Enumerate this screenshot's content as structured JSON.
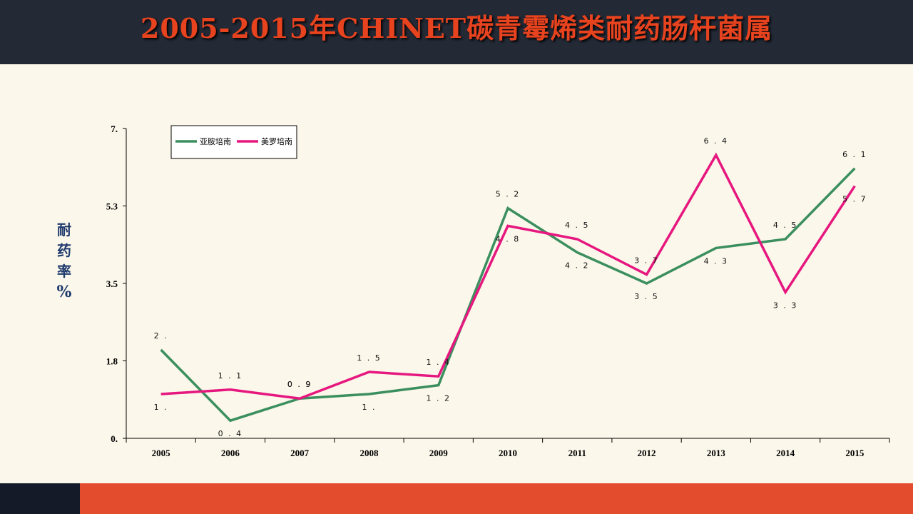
{
  "title": "2005-2015年CHINET碳青霉烯类耐药肠杆菌属",
  "chart_data": {
    "type": "line",
    "title": "2005-2015年CHINET碳青霉烯类耐药肠杆菌属",
    "ylabel": [
      "耐",
      "药",
      "率",
      "%"
    ],
    "xlabel": "",
    "categories": [
      "2005",
      "2006",
      "2007",
      "2008",
      "2009",
      "2010",
      "2011",
      "2012",
      "2013",
      "2014",
      "2015"
    ],
    "y_ticks": [
      "0.",
      "1.8",
      "3.5",
      "5.3",
      "7."
    ],
    "ylim": [
      0,
      7
    ],
    "legend_position": "top-left",
    "grid": false,
    "series": [
      {
        "name": "亚胺培南",
        "color": "#3b8f5f",
        "values": [
          2.0,
          0.4,
          0.9,
          1.0,
          1.2,
          5.2,
          4.2,
          3.5,
          4.3,
          4.5,
          6.1
        ],
        "labels": [
          "2.",
          "0.4",
          "0.9",
          "1.",
          "1.2",
          "5.2",
          "4.2",
          "3.5",
          "4.3",
          "4.5",
          "6.1"
        ]
      },
      {
        "name": "美罗培南",
        "color": "#e6177f",
        "values": [
          1.0,
          1.1,
          0.9,
          1.5,
          1.4,
          4.8,
          4.5,
          3.7,
          6.4,
          3.3,
          5.7
        ],
        "labels": [
          "1.",
          "1.1",
          "0.9",
          "1.5",
          "1.4",
          "4.8",
          "4.5",
          "3.7",
          "6.4",
          "3.3",
          "5.7"
        ]
      }
    ]
  }
}
